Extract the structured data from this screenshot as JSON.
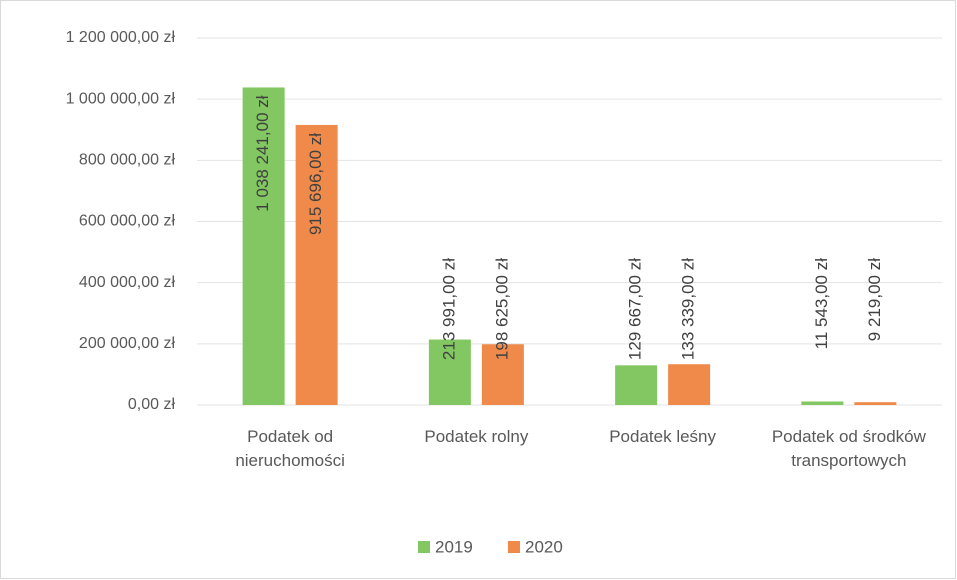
{
  "chart_data": {
    "type": "bar",
    "categories": [
      "Podatek od nieruchomości",
      "Podatek rolny",
      "Podatek leśny",
      "Podatek od środków transportowych"
    ],
    "series": [
      {
        "name": "2019",
        "color": "#82c761",
        "values": [
          1038241,
          213991,
          129667,
          11543
        ],
        "value_labels": [
          "1 038 241,00 zł",
          "213 991,00 zł",
          "129 667,00 zł",
          "11 543,00 zł"
        ]
      },
      {
        "name": "2020",
        "color": "#ef8a4a",
        "values": [
          915696,
          198625,
          133339,
          9219
        ],
        "value_labels": [
          "915 696,00 zł",
          "198 625,00 zł",
          "133 339,00 zł",
          "9 219,00 zł"
        ]
      }
    ],
    "ylim": [
      0,
      1200000
    ],
    "yticks": [
      {
        "value": 0,
        "label": "0,00 zł"
      },
      {
        "value": 200000,
        "label": "200 000,00 zł"
      },
      {
        "value": 400000,
        "label": "400 000,00 zł"
      },
      {
        "value": 600000,
        "label": "600 000,00 zł"
      },
      {
        "value": 800000,
        "label": "800 000,00 zł"
      },
      {
        "value": 1000000,
        "label": "1 000 000,00 zł"
      },
      {
        "value": 1200000,
        "label": "1 200 000,00 zł"
      }
    ],
    "grid": true,
    "legend": "bottom"
  }
}
